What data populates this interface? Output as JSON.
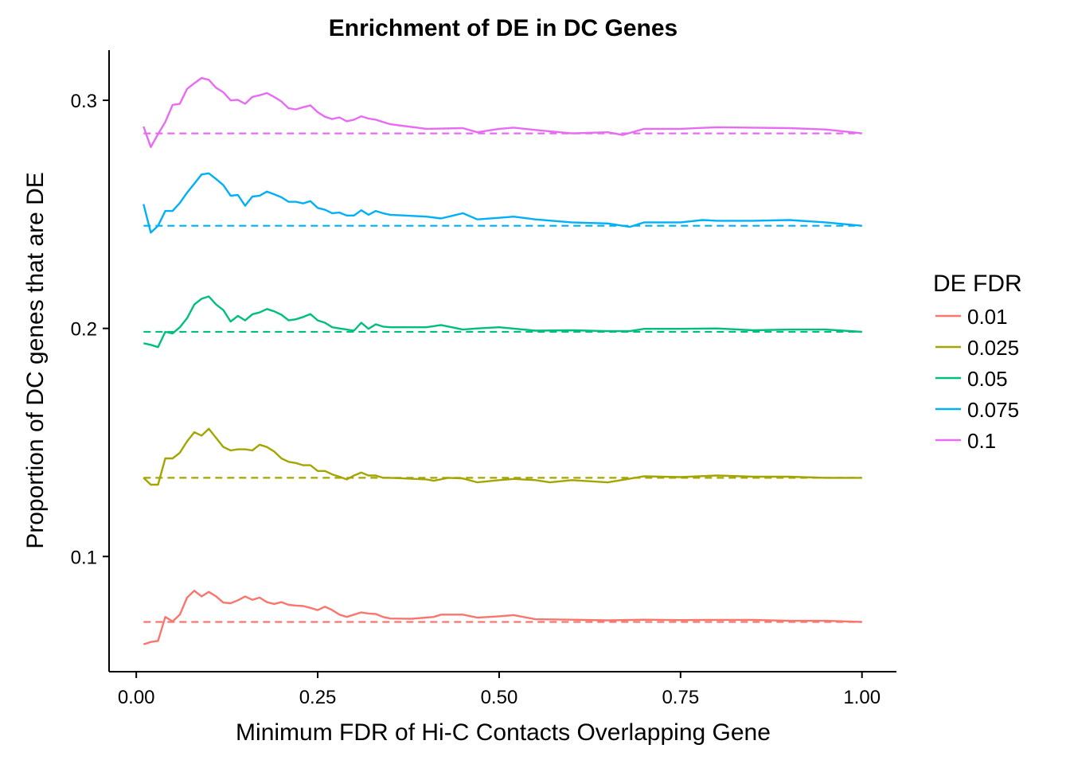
{
  "chart_data": {
    "type": "line",
    "title": "Enrichment of DE in DC Genes",
    "xlabel": "Minimum FDR of Hi-C Contacts Overlapping Gene",
    "ylabel": "Proportion of DC genes that are DE",
    "xlim": [
      -0.0375,
      1.0475
    ],
    "ylim": [
      0.0495,
      0.322
    ],
    "x_ticks": [
      0,
      0.25,
      0.5,
      0.75,
      1
    ],
    "x_tick_labels": [
      "0.00",
      "0.25",
      "0.50",
      "0.75",
      "1.00"
    ],
    "y_ticks": [
      0.1,
      0.2,
      0.3
    ],
    "y_tick_labels": [
      "0.1",
      "0.2",
      "0.3"
    ],
    "grid": false,
    "legend": {
      "title": "DE FDR",
      "position": "right"
    },
    "series": [
      {
        "name": "0.01",
        "color": "#F8766D",
        "baseline": 0.0713,
        "points": [
          [
            0.01,
            0.0615
          ],
          [
            0.02,
            0.0625
          ],
          [
            0.03,
            0.063
          ],
          [
            0.04,
            0.0735
          ],
          [
            0.05,
            0.0715
          ],
          [
            0.06,
            0.0745
          ],
          [
            0.07,
            0.082
          ],
          [
            0.08,
            0.085
          ],
          [
            0.09,
            0.0825
          ],
          [
            0.1,
            0.0845
          ],
          [
            0.11,
            0.0825
          ],
          [
            0.12,
            0.0798
          ],
          [
            0.13,
            0.0795
          ],
          [
            0.14,
            0.0808
          ],
          [
            0.15,
            0.0825
          ],
          [
            0.16,
            0.081
          ],
          [
            0.17,
            0.082
          ],
          [
            0.18,
            0.08
          ],
          [
            0.19,
            0.0792
          ],
          [
            0.2,
            0.08
          ],
          [
            0.21,
            0.0788
          ],
          [
            0.22,
            0.0785
          ],
          [
            0.23,
            0.0783
          ],
          [
            0.24,
            0.0775
          ],
          [
            0.25,
            0.0765
          ],
          [
            0.26,
            0.078
          ],
          [
            0.27,
            0.0765
          ],
          [
            0.28,
            0.0745
          ],
          [
            0.29,
            0.0735
          ],
          [
            0.3,
            0.0745
          ],
          [
            0.31,
            0.0755
          ],
          [
            0.32,
            0.075
          ],
          [
            0.33,
            0.0748
          ],
          [
            0.34,
            0.0735
          ],
          [
            0.35,
            0.0728
          ],
          [
            0.38,
            0.0727
          ],
          [
            0.41,
            0.0735
          ],
          [
            0.42,
            0.0745
          ],
          [
            0.45,
            0.0745
          ],
          [
            0.47,
            0.0732
          ],
          [
            0.5,
            0.0738
          ],
          [
            0.52,
            0.0743
          ],
          [
            0.55,
            0.0725
          ],
          [
            0.6,
            0.0723
          ],
          [
            0.65,
            0.072
          ],
          [
            0.7,
            0.0723
          ],
          [
            0.75,
            0.0721
          ],
          [
            0.8,
            0.0722
          ],
          [
            0.85,
            0.0722
          ],
          [
            0.9,
            0.0718
          ],
          [
            0.95,
            0.0718
          ],
          [
            1.0,
            0.0713
          ]
        ]
      },
      {
        "name": "0.025",
        "color": "#A3A500",
        "baseline": 0.1345,
        "points": [
          [
            0.01,
            0.1345
          ],
          [
            0.02,
            0.1315
          ],
          [
            0.03,
            0.1315
          ],
          [
            0.04,
            0.143
          ],
          [
            0.05,
            0.143
          ],
          [
            0.06,
            0.1455
          ],
          [
            0.07,
            0.1505
          ],
          [
            0.08,
            0.1545
          ],
          [
            0.09,
            0.153
          ],
          [
            0.1,
            0.156
          ],
          [
            0.11,
            0.152
          ],
          [
            0.12,
            0.148
          ],
          [
            0.13,
            0.1465
          ],
          [
            0.14,
            0.147
          ],
          [
            0.15,
            0.147
          ],
          [
            0.16,
            0.1465
          ],
          [
            0.17,
            0.149
          ],
          [
            0.18,
            0.148
          ],
          [
            0.19,
            0.146
          ],
          [
            0.2,
            0.143
          ],
          [
            0.21,
            0.1415
          ],
          [
            0.22,
            0.141
          ],
          [
            0.23,
            0.14
          ],
          [
            0.24,
            0.14
          ],
          [
            0.25,
            0.1375
          ],
          [
            0.26,
            0.1375
          ],
          [
            0.27,
            0.136
          ],
          [
            0.28,
            0.135
          ],
          [
            0.29,
            0.1338
          ],
          [
            0.3,
            0.1355
          ],
          [
            0.31,
            0.1368
          ],
          [
            0.32,
            0.1355
          ],
          [
            0.33,
            0.1355
          ],
          [
            0.34,
            0.1345
          ],
          [
            0.35,
            0.1345
          ],
          [
            0.4,
            0.1338
          ],
          [
            0.41,
            0.1332
          ],
          [
            0.43,
            0.1345
          ],
          [
            0.45,
            0.1342
          ],
          [
            0.47,
            0.1325
          ],
          [
            0.5,
            0.1335
          ],
          [
            0.52,
            0.134
          ],
          [
            0.55,
            0.1335
          ],
          [
            0.57,
            0.1325
          ],
          [
            0.6,
            0.1335
          ],
          [
            0.65,
            0.1325
          ],
          [
            0.7,
            0.1352
          ],
          [
            0.75,
            0.1348
          ],
          [
            0.8,
            0.1355
          ],
          [
            0.85,
            0.135
          ],
          [
            0.9,
            0.135
          ],
          [
            0.95,
            0.1345
          ],
          [
            1.0,
            0.1345
          ]
        ]
      },
      {
        "name": "0.05",
        "color": "#00BF7D",
        "baseline": 0.1985,
        "points": [
          [
            0.01,
            0.1935
          ],
          [
            0.02,
            0.1928
          ],
          [
            0.03,
            0.1918
          ],
          [
            0.04,
            0.1985
          ],
          [
            0.05,
            0.1978
          ],
          [
            0.06,
            0.2005
          ],
          [
            0.07,
            0.2045
          ],
          [
            0.08,
            0.2105
          ],
          [
            0.09,
            0.213
          ],
          [
            0.1,
            0.214
          ],
          [
            0.11,
            0.2105
          ],
          [
            0.12,
            0.208
          ],
          [
            0.13,
            0.203
          ],
          [
            0.14,
            0.2055
          ],
          [
            0.15,
            0.2035
          ],
          [
            0.16,
            0.2062
          ],
          [
            0.17,
            0.207
          ],
          [
            0.18,
            0.2085
          ],
          [
            0.19,
            0.2075
          ],
          [
            0.2,
            0.206
          ],
          [
            0.21,
            0.2035
          ],
          [
            0.22,
            0.204
          ],
          [
            0.23,
            0.205
          ],
          [
            0.24,
            0.2063
          ],
          [
            0.25,
            0.2035
          ],
          [
            0.26,
            0.2025
          ],
          [
            0.27,
            0.2005
          ],
          [
            0.28,
            0.2
          ],
          [
            0.29,
            0.1995
          ],
          [
            0.3,
            0.199
          ],
          [
            0.31,
            0.2025
          ],
          [
            0.32,
            0.1998
          ],
          [
            0.33,
            0.2018
          ],
          [
            0.34,
            0.2008
          ],
          [
            0.35,
            0.2005
          ],
          [
            0.4,
            0.2005
          ],
          [
            0.42,
            0.2015
          ],
          [
            0.45,
            0.1995
          ],
          [
            0.47,
            0.2
          ],
          [
            0.5,
            0.2005
          ],
          [
            0.55,
            0.199
          ],
          [
            0.6,
            0.1992
          ],
          [
            0.65,
            0.1988
          ],
          [
            0.68,
            0.1988
          ],
          [
            0.7,
            0.1998
          ],
          [
            0.75,
            0.1998
          ],
          [
            0.8,
            0.2
          ],
          [
            0.85,
            0.1992
          ],
          [
            0.9,
            0.1995
          ],
          [
            0.95,
            0.1995
          ],
          [
            1.0,
            0.1985
          ]
        ]
      },
      {
        "name": "0.075",
        "color": "#00B0F6",
        "baseline": 0.245,
        "points": [
          [
            0.01,
            0.2545
          ],
          [
            0.02,
            0.242
          ],
          [
            0.03,
            0.245
          ],
          [
            0.04,
            0.2515
          ],
          [
            0.05,
            0.2515
          ],
          [
            0.06,
            0.255
          ],
          [
            0.07,
            0.2595
          ],
          [
            0.08,
            0.2635
          ],
          [
            0.09,
            0.2675
          ],
          [
            0.1,
            0.268
          ],
          [
            0.11,
            0.2655
          ],
          [
            0.12,
            0.2628
          ],
          [
            0.13,
            0.2582
          ],
          [
            0.14,
            0.2585
          ],
          [
            0.15,
            0.2538
          ],
          [
            0.16,
            0.2578
          ],
          [
            0.17,
            0.2582
          ],
          [
            0.18,
            0.26
          ],
          [
            0.19,
            0.2588
          ],
          [
            0.2,
            0.2575
          ],
          [
            0.21,
            0.2555
          ],
          [
            0.22,
            0.2555
          ],
          [
            0.23,
            0.2548
          ],
          [
            0.24,
            0.2558
          ],
          [
            0.25,
            0.2528
          ],
          [
            0.26,
            0.252
          ],
          [
            0.27,
            0.2505
          ],
          [
            0.28,
            0.2508
          ],
          [
            0.29,
            0.2495
          ],
          [
            0.3,
            0.2495
          ],
          [
            0.31,
            0.2518
          ],
          [
            0.32,
            0.2498
          ],
          [
            0.33,
            0.2515
          ],
          [
            0.34,
            0.2505
          ],
          [
            0.35,
            0.2498
          ],
          [
            0.4,
            0.249
          ],
          [
            0.42,
            0.2482
          ],
          [
            0.45,
            0.2505
          ],
          [
            0.47,
            0.2478
          ],
          [
            0.5,
            0.2485
          ],
          [
            0.52,
            0.249
          ],
          [
            0.55,
            0.2478
          ],
          [
            0.6,
            0.2465
          ],
          [
            0.65,
            0.246
          ],
          [
            0.68,
            0.2445
          ],
          [
            0.7,
            0.2465
          ],
          [
            0.75,
            0.2465
          ],
          [
            0.78,
            0.2475
          ],
          [
            0.8,
            0.2472
          ],
          [
            0.85,
            0.2472
          ],
          [
            0.9,
            0.2475
          ],
          [
            0.95,
            0.2465
          ],
          [
            1.0,
            0.245
          ]
        ]
      },
      {
        "name": "0.1",
        "color": "#E76BF3",
        "baseline": 0.2855,
        "points": [
          [
            0.01,
            0.2885
          ],
          [
            0.02,
            0.2795
          ],
          [
            0.03,
            0.2852
          ],
          [
            0.04,
            0.2905
          ],
          [
            0.05,
            0.298
          ],
          [
            0.06,
            0.2985
          ],
          [
            0.07,
            0.305
          ],
          [
            0.08,
            0.3075
          ],
          [
            0.09,
            0.3098
          ],
          [
            0.1,
            0.309
          ],
          [
            0.11,
            0.3055
          ],
          [
            0.12,
            0.3035
          ],
          [
            0.13,
            0.3
          ],
          [
            0.14,
            0.3002
          ],
          [
            0.15,
            0.2985
          ],
          [
            0.16,
            0.3015
          ],
          [
            0.17,
            0.3022
          ],
          [
            0.18,
            0.3032
          ],
          [
            0.19,
            0.3015
          ],
          [
            0.2,
            0.2995
          ],
          [
            0.21,
            0.2965
          ],
          [
            0.22,
            0.296
          ],
          [
            0.23,
            0.297
          ],
          [
            0.24,
            0.2978
          ],
          [
            0.25,
            0.2948
          ],
          [
            0.26,
            0.2928
          ],
          [
            0.27,
            0.2918
          ],
          [
            0.28,
            0.2925
          ],
          [
            0.29,
            0.2908
          ],
          [
            0.3,
            0.2915
          ],
          [
            0.31,
            0.293
          ],
          [
            0.32,
            0.292
          ],
          [
            0.33,
            0.2915
          ],
          [
            0.34,
            0.2905
          ],
          [
            0.35,
            0.2895
          ],
          [
            0.4,
            0.2875
          ],
          [
            0.45,
            0.2878
          ],
          [
            0.47,
            0.286
          ],
          [
            0.5,
            0.2875
          ],
          [
            0.52,
            0.288
          ],
          [
            0.55,
            0.287
          ],
          [
            0.6,
            0.2855
          ],
          [
            0.65,
            0.286
          ],
          [
            0.67,
            0.2848
          ],
          [
            0.7,
            0.2875
          ],
          [
            0.75,
            0.2875
          ],
          [
            0.8,
            0.2882
          ],
          [
            0.85,
            0.288
          ],
          [
            0.9,
            0.2878
          ],
          [
            0.95,
            0.2872
          ],
          [
            1.0,
            0.2855
          ]
        ]
      }
    ]
  }
}
